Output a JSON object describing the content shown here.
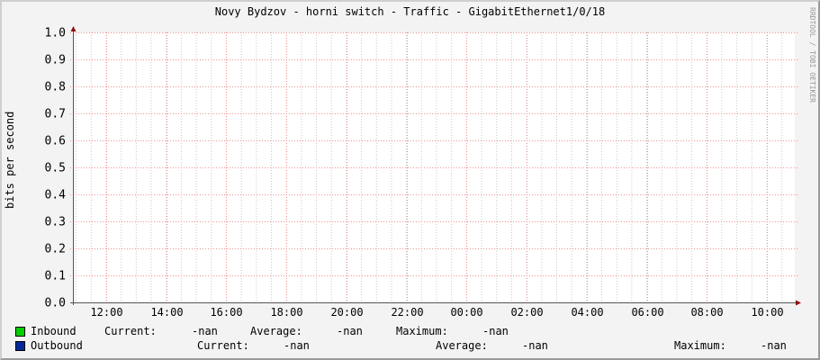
{
  "title": "Novy Bydzov - horni switch - Traffic - GigabitEthernet1/0/18",
  "credit": "RRDTOOL / TOBI OETIKER",
  "chart_data": {
    "type": "line",
    "title": "Novy Bydzov - horni switch - Traffic - GigabitEthernet1/0/18",
    "ylabel": "bits per second",
    "xlabel": "",
    "ylim": [
      0,
      1.0
    ],
    "yticks": [
      "0.0",
      "0.1",
      "0.2",
      "0.3",
      "0.4",
      "0.5",
      "0.6",
      "0.7",
      "0.8",
      "0.9",
      "1.0"
    ],
    "xticks": [
      "12:00",
      "14:00",
      "16:00",
      "18:00",
      "20:00",
      "22:00",
      "00:00",
      "02:00",
      "04:00",
      "06:00",
      "08:00",
      "10:00"
    ],
    "grid": true,
    "series": [
      {
        "name": "Inbound",
        "color": "#00cf00",
        "values": []
      },
      {
        "name": "Outbound",
        "color": "#002a97",
        "values": []
      }
    ]
  },
  "legend": [
    {
      "name": "Inbound",
      "color": "#00cf00",
      "current_label": "Current:",
      "current": "-nan",
      "average_label": "Average:",
      "average": "-nan",
      "maximum_label": "Maximum:",
      "maximum": "-nan"
    },
    {
      "name": "Outbound",
      "color": "#002a97",
      "current_label": "Current:",
      "current": "-nan",
      "average_label": "Average:",
      "average": "-nan",
      "maximum_label": "Maximum:",
      "maximum": "-nan"
    }
  ]
}
